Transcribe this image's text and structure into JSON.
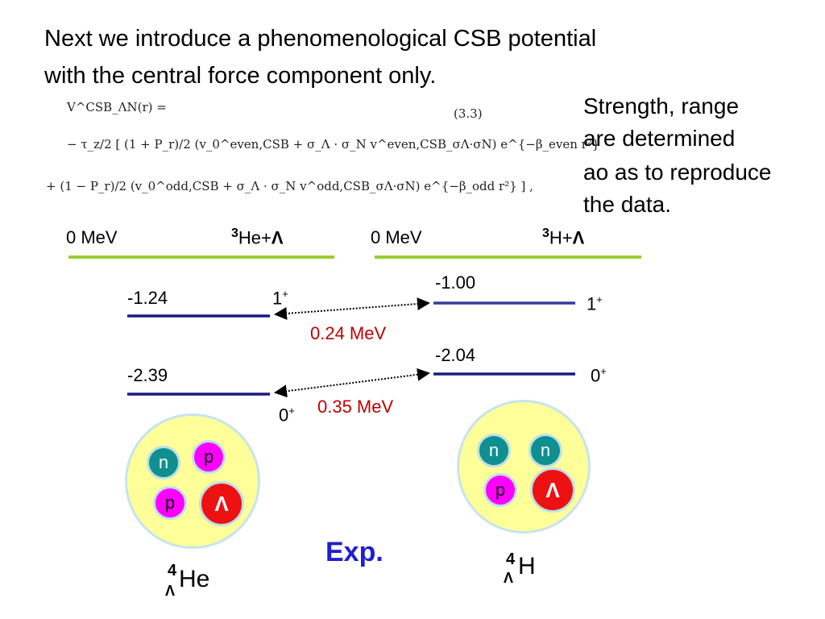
{
  "intro": {
    "line1": "Next we introduce a phenomenological CSB potential",
    "line2": "with the central force component only."
  },
  "formula": {
    "line1_lhs": "V^CSB_ΛN(r) =",
    "line1_eqno": "(3.3)",
    "line2": "− τ_z/2 [ (1 + P_r)/2 (v_0^even,CSB + σ_Λ · σ_N v^even,CSB_σΛ·σN) e^{−β_even r²}",
    "line3": "+ (1 − P_r)/2 (v_0^odd,CSB + σ_Λ · σ_N v^odd,CSB_σΛ·σN) e^{−β_odd r²} ] ,"
  },
  "note": {
    "line1": "Strength, range",
    "line2": "are determined",
    "line3": "ao as to reproduce",
    "line4": "the data."
  },
  "left_system": {
    "zero_label": "0 MeV",
    "threshold_mass": "3",
    "threshold_rest": "He+",
    "threshold_lambda": "Λ",
    "level1_energy": "-1.24",
    "level1_spin": "1",
    "level1_parity": "+",
    "level2_energy": "-2.39",
    "level2_spin": "0",
    "level2_parity": "+",
    "hypernucleus_lambda": "Λ",
    "hypernucleus_mass": "4",
    "hypernucleus_symbol": "He",
    "particles": [
      "n",
      "p",
      "p",
      "Λ"
    ]
  },
  "right_system": {
    "zero_label": "0 MeV",
    "threshold_mass": "3",
    "threshold_rest": "H+",
    "threshold_lambda": "Λ",
    "level1_energy": "-1.00",
    "level1_spin": "1",
    "level1_parity": "+",
    "level2_energy": "-2.04",
    "level2_spin": "0",
    "level2_parity": "+",
    "hypernucleus_lambda": "Λ",
    "hypernucleus_mass": "4",
    "hypernucleus_symbol": "H",
    "particles": [
      "n",
      "n",
      "p",
      "Λ"
    ]
  },
  "differences": {
    "upper": "0.24 MeV",
    "lower": "0.35 MeV"
  },
  "exp_label": "Exp.",
  "colors": {
    "threshold_line": "#9acd32",
    "level_line": "#1a1a80",
    "difference_text": "#c00000",
    "exp_text": "#1f1fcf",
    "nucleus_fill": "#ffff99",
    "neutron": "#0f8f8f",
    "proton": "#ff00ff",
    "lambda": "#ee1111"
  }
}
